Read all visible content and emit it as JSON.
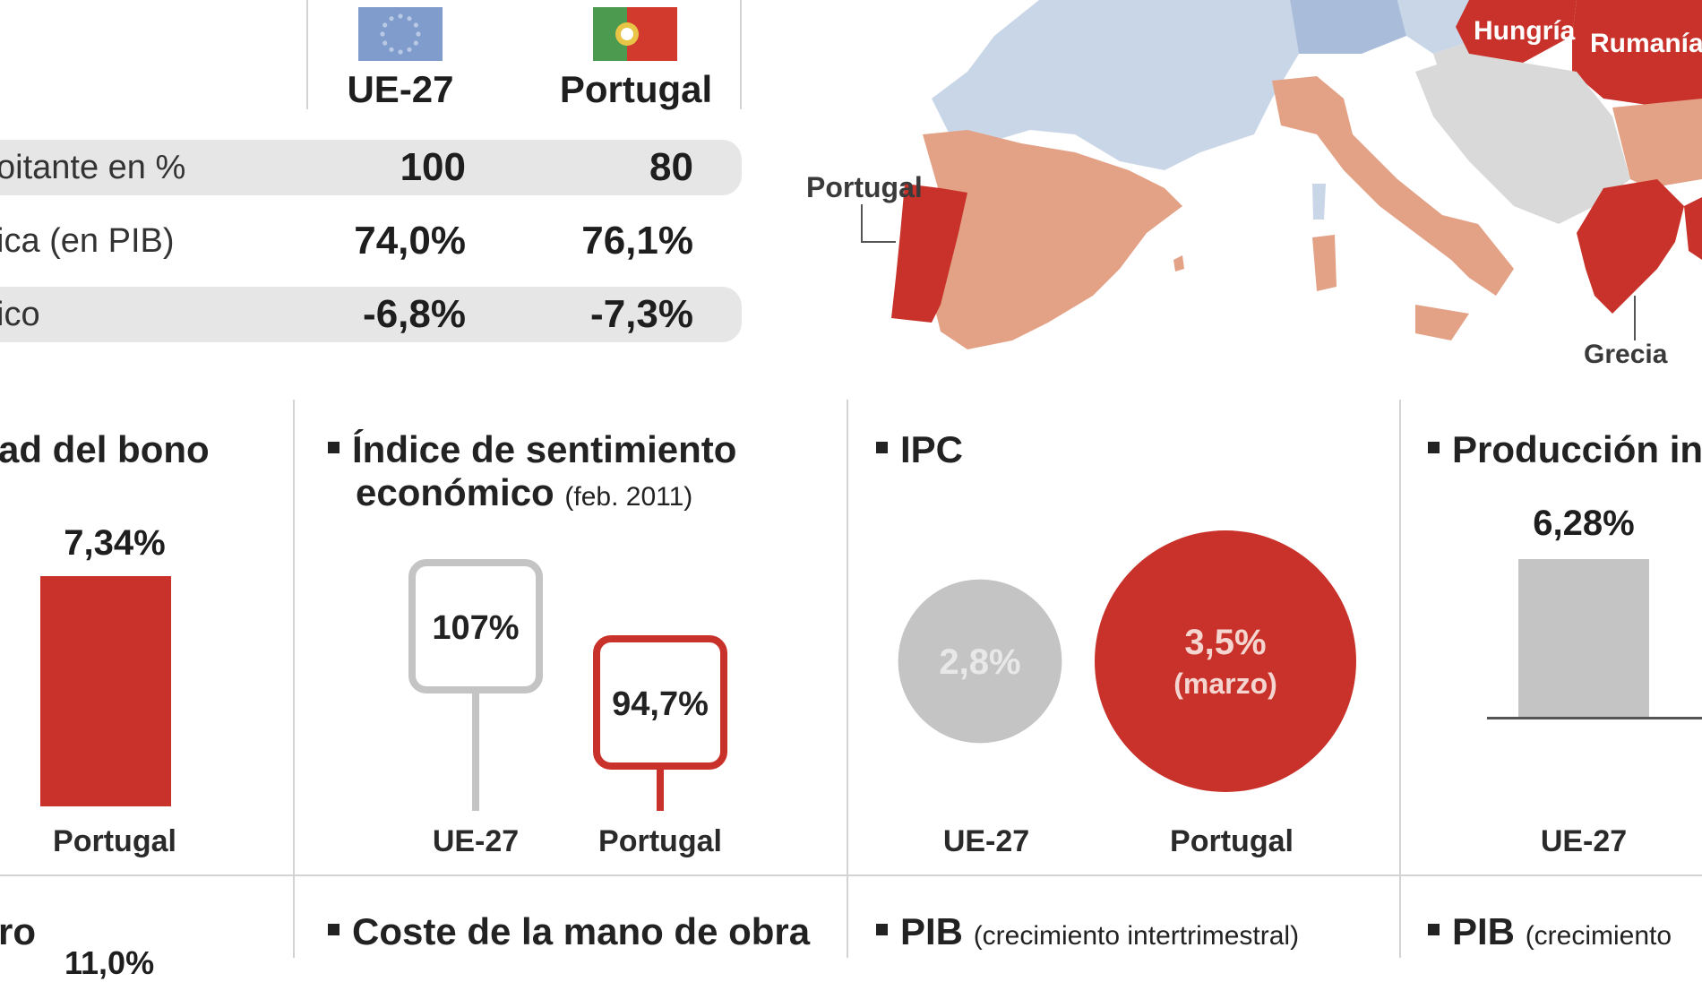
{
  "table": {
    "columns": [
      "UE-27",
      "Portugal"
    ],
    "rows": [
      {
        "label": "oitante en %",
        "ue": "100",
        "pt": "80"
      },
      {
        "label": "ica (en PIB)",
        "ue": "74,0%",
        "pt": "76,1%"
      },
      {
        "label": "ico",
        "ue": "-6,8%",
        "pt": "-7,3%"
      }
    ]
  },
  "map": {
    "labels": [
      "Hungría",
      "Rumanía",
      "Portugal",
      "Grecia"
    ],
    "colors": {
      "red": "#c8322a",
      "salmon": "#e3a186",
      "blue": "#a9bcd9",
      "lightblue": "#c9d6e8",
      "grey": "#d9d9d9"
    }
  },
  "panels": {
    "bono": {
      "title": "ad del bono",
      "cat_label": "Portugal",
      "value_label": "7,34%"
    },
    "sentimiento": {
      "title": "Índice de sentimiento",
      "title2": "económico",
      "note": "(feb. 2011)",
      "ue_label": "UE-27",
      "pt_label": "Portugal",
      "ue_value": "107%",
      "pt_value": "94,7%"
    },
    "ipc": {
      "title": "IPC",
      "ue_label": "UE-27",
      "pt_label": "Portugal",
      "ue_value": "2,8%",
      "pt_value": "3,5%",
      "pt_note": "(marzo)"
    },
    "produccion": {
      "title": "Producción in",
      "ue_label": "UE-27",
      "ue_value": "6,28%"
    }
  },
  "bottom": {
    "t1": "ro",
    "t1_value": "11,0%",
    "t2": "Coste de la mano de obra",
    "t3": "PIB",
    "t3_note": "(crecimiento intertrimestral)",
    "t4": "PIB",
    "t4_note": "(crecimiento"
  },
  "chart_data": [
    {
      "type": "bar",
      "title": "ad del bono",
      "categories": [
        "Portugal"
      ],
      "values": [
        7.34
      ]
    },
    {
      "type": "bar",
      "title": "Índice de sentimiento económico (feb. 2011)",
      "categories": [
        "UE-27",
        "Portugal"
      ],
      "values": [
        107,
        94.7
      ]
    },
    {
      "type": "bubble",
      "title": "IPC",
      "categories": [
        "UE-27",
        "Portugal"
      ],
      "values": [
        2.8,
        3.5
      ]
    },
    {
      "type": "bar",
      "title": "Producción in",
      "categories": [
        "UE-27"
      ],
      "values": [
        6.28
      ]
    }
  ]
}
